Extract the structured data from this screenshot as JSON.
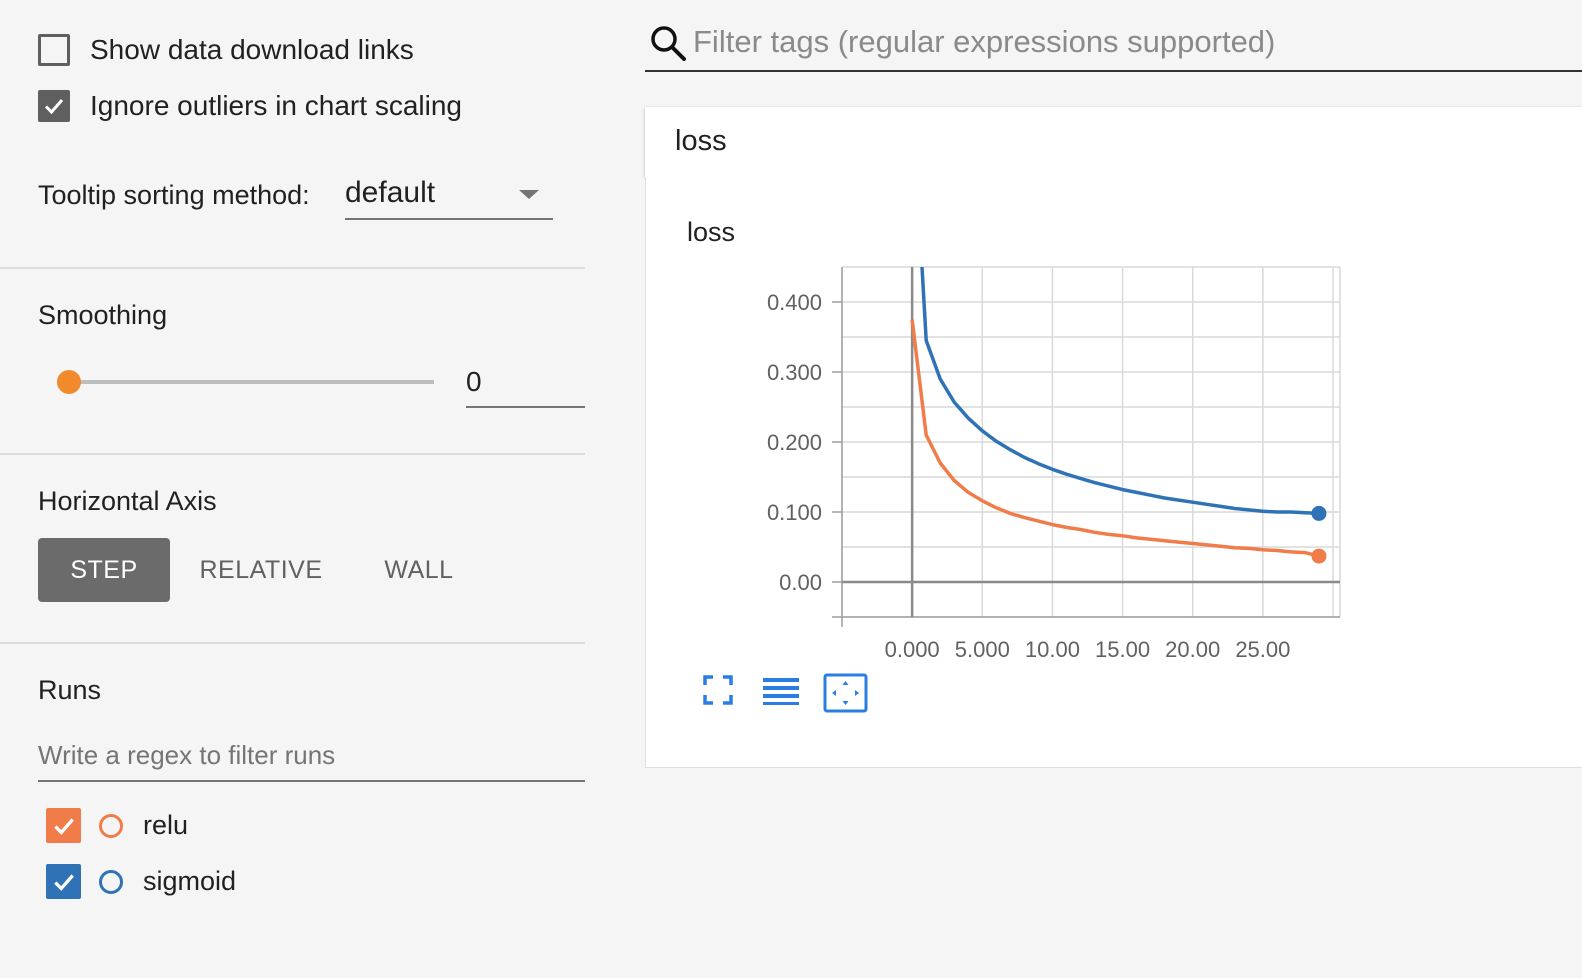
{
  "sidebar": {
    "show_download_label": "Show data download links",
    "show_download_checked": false,
    "ignore_outliers_label": "Ignore outliers in chart scaling",
    "ignore_outliers_checked": true,
    "tooltip_label": "Tooltip sorting method:",
    "tooltip_value": "default",
    "smoothing_title": "Smoothing",
    "smoothing_value": "0",
    "horizontal_axis_title": "Horizontal Axis",
    "axis_buttons": [
      "STEP",
      "RELATIVE",
      "WALL"
    ],
    "axis_selected": "STEP",
    "runs_title": "Runs",
    "runs_filter_placeholder": "Write a regex to filter runs",
    "runs": [
      {
        "name": "relu",
        "checked": true,
        "color": "#f07c4a"
      },
      {
        "name": "sigmoid",
        "checked": true,
        "color": "#2f72b6"
      }
    ]
  },
  "search": {
    "placeholder": "Filter tags (regular expressions supported)"
  },
  "card": {
    "header_title": "loss",
    "chart_title": "loss"
  },
  "colors": {
    "accent": "#f08a2c",
    "relu": "#f07c4a",
    "sigmoid": "#2f72b6",
    "icon_blue": "#2a7de1"
  },
  "chart_data": {
    "type": "line",
    "title": "loss",
    "xlabel": "",
    "ylabel": "",
    "xlim": [
      -5,
      30.5
    ],
    "ylim": [
      -0.05,
      0.45
    ],
    "x_ticks": [
      "0.000",
      "5.000",
      "10.00",
      "15.00",
      "20.00",
      "25.00"
    ],
    "y_ticks": [
      "0.00",
      "0.100",
      "0.200",
      "0.300",
      "0.400"
    ],
    "grid": true,
    "series": [
      {
        "name": "relu",
        "color": "#f07c4a",
        "x": [
          0,
          1,
          2,
          3,
          4,
          5,
          6,
          7,
          8,
          9,
          10,
          11,
          12,
          13,
          14,
          15,
          16,
          17,
          18,
          19,
          20,
          21,
          22,
          23,
          24,
          25,
          26,
          27,
          28,
          29
        ],
        "y": [
          0.375,
          0.21,
          0.17,
          0.145,
          0.128,
          0.116,
          0.106,
          0.098,
          0.092,
          0.087,
          0.082,
          0.078,
          0.075,
          0.071,
          0.068,
          0.066,
          0.063,
          0.061,
          0.059,
          0.057,
          0.055,
          0.053,
          0.051,
          0.049,
          0.048,
          0.046,
          0.045,
          0.043,
          0.042,
          0.037
        ]
      },
      {
        "name": "sigmoid",
        "color": "#2f72b6",
        "x": [
          0.7,
          1,
          2,
          3,
          4,
          5,
          6,
          7,
          8,
          9,
          10,
          11,
          12,
          13,
          14,
          15,
          16,
          17,
          18,
          19,
          20,
          21,
          22,
          23,
          24,
          25,
          26,
          27,
          28,
          29
        ],
        "y": [
          0.45,
          0.345,
          0.29,
          0.257,
          0.234,
          0.216,
          0.201,
          0.189,
          0.178,
          0.169,
          0.161,
          0.154,
          0.148,
          0.142,
          0.137,
          0.132,
          0.128,
          0.124,
          0.12,
          0.117,
          0.114,
          0.111,
          0.108,
          0.105,
          0.103,
          0.101,
          0.1,
          0.1,
          0.099,
          0.098
        ]
      }
    ]
  }
}
